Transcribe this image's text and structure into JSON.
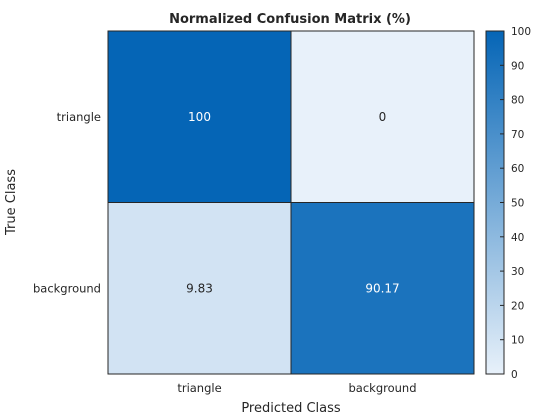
{
  "chart_data": {
    "type": "heatmap",
    "title": "Normalized Confusion Matrix (%)",
    "xlabel": "Predicted Class",
    "ylabel": "True Class",
    "x_categories": [
      "triangle",
      "background"
    ],
    "y_categories": [
      "triangle",
      "background"
    ],
    "values": [
      [
        100,
        0
      ],
      [
        9.83,
        90.17
      ]
    ],
    "cell_labels": [
      [
        "100",
        "0"
      ],
      [
        "9.83",
        "90.17"
      ]
    ],
    "colorbar": {
      "range": [
        0,
        100
      ],
      "ticks": [
        "0",
        "10",
        "20",
        "30",
        "40",
        "50",
        "60",
        "70",
        "80",
        "90",
        "100"
      ],
      "color_low": "#e8f1fa",
      "color_high": "#0565b6"
    },
    "grid": false
  }
}
